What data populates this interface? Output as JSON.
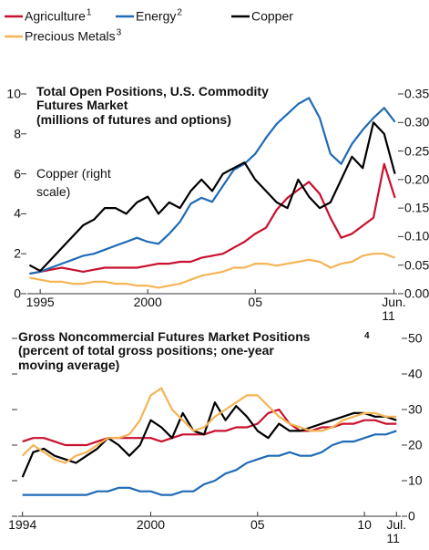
{
  "chart_data": [
    {
      "type": "line",
      "title": "Total Open Positions, U.S. Commodity Futures Market",
      "subtitle": "(millions of futures and options)",
      "annotation": "Copper (right scale)",
      "x": [
        1994.5,
        1995,
        1995.5,
        1996,
        1996.5,
        1997,
        1997.5,
        1998,
        1998.5,
        1999,
        1999.5,
        2000,
        2000.5,
        2001,
        2001.5,
        2002,
        2002.5,
        2003,
        2003.5,
        2004,
        2004.5,
        2005,
        2005.5,
        2006,
        2006.5,
        2007,
        2007.5,
        2008,
        2008.5,
        2009,
        2009.5,
        2010,
        2010.5,
        2011,
        2011.5
      ],
      "xlim": [
        1994.4,
        2011.6
      ],
      "xticks": [
        1995,
        2000,
        {
          "value": 2005,
          "label": "05"
        },
        {
          "value": 2011.45,
          "label": "Jun.\n11"
        }
      ],
      "ylim": [
        0,
        10
      ],
      "yticks": [
        0,
        2,
        4,
        6,
        8,
        10
      ],
      "y2lim": [
        0,
        0.35
      ],
      "y2ticks": [
        {
          "value": 0,
          "label": "0.00"
        },
        {
          "value": 0.05,
          "label": "0.05"
        },
        {
          "value": 0.1,
          "label": "0.10"
        },
        {
          "value": 0.15,
          "label": "0.15"
        },
        {
          "value": 0.2,
          "label": "0.20"
        },
        {
          "value": 0.25,
          "label": "0.25"
        },
        {
          "value": 0.3,
          "label": "0.30"
        },
        {
          "value": 0.35,
          "label": "0.35"
        }
      ],
      "series": [
        {
          "name": "Agriculture",
          "footnote": "1",
          "color": "#c8102e",
          "values": [
            1.0,
            1.1,
            1.2,
            1.3,
            1.2,
            1.1,
            1.2,
            1.3,
            1.3,
            1.3,
            1.3,
            1.4,
            1.5,
            1.5,
            1.6,
            1.6,
            1.8,
            1.9,
            2.0,
            2.3,
            2.6,
            3.0,
            3.3,
            4.2,
            4.8,
            5.2,
            5.6,
            5.0,
            3.8,
            2.8,
            3.0,
            3.4,
            3.8,
            6.5,
            4.8
          ]
        },
        {
          "name": "Energy",
          "footnote": "2",
          "color": "#1f6bb5",
          "values": [
            1.0,
            1.1,
            1.3,
            1.5,
            1.7,
            1.9,
            2.0,
            2.2,
            2.4,
            2.6,
            2.8,
            2.6,
            2.5,
            3.0,
            3.6,
            4.5,
            4.8,
            4.6,
            5.4,
            6.2,
            6.5,
            7.0,
            7.8,
            8.5,
            9.0,
            9.5,
            9.8,
            8.8,
            7.0,
            6.5,
            7.5,
            8.2,
            8.8,
            9.3,
            8.6
          ]
        },
        {
          "name": "Copper",
          "color": "#000000",
          "axis": "y2",
          "values": [
            0.05,
            0.04,
            0.06,
            0.08,
            0.1,
            0.12,
            0.13,
            0.15,
            0.15,
            0.14,
            0.16,
            0.17,
            0.14,
            0.16,
            0.15,
            0.18,
            0.2,
            0.18,
            0.21,
            0.22,
            0.23,
            0.2,
            0.18,
            0.16,
            0.15,
            0.2,
            0.17,
            0.15,
            0.16,
            0.2,
            0.24,
            0.22,
            0.3,
            0.28,
            0.21
          ]
        },
        {
          "name": "Precious Metals",
          "footnote": "3",
          "color": "#f5b455",
          "values": [
            0.8,
            0.7,
            0.6,
            0.6,
            0.5,
            0.5,
            0.6,
            0.6,
            0.5,
            0.5,
            0.4,
            0.4,
            0.3,
            0.4,
            0.5,
            0.7,
            0.9,
            1.0,
            1.1,
            1.3,
            1.3,
            1.5,
            1.5,
            1.4,
            1.5,
            1.6,
            1.7,
            1.6,
            1.3,
            1.5,
            1.6,
            1.9,
            2.0,
            2.0,
            1.8
          ]
        }
      ]
    },
    {
      "type": "line",
      "title": "Gross Noncommercial Futures Market Positions",
      "title_footnote": "4",
      "subtitle": "(percent of total gross positions; one-year moving average)",
      "x": [
        1994,
        1994.5,
        1995,
        1995.5,
        1996,
        1996.5,
        1997,
        1997.5,
        1998,
        1998.5,
        1999,
        1999.5,
        2000,
        2000.5,
        2001,
        2001.5,
        2002,
        2002.5,
        2003,
        2003.5,
        2004,
        2004.5,
        2005,
        2005.5,
        2006,
        2006.5,
        2007,
        2007.5,
        2008,
        2008.5,
        2009,
        2009.5,
        2010,
        2010.5,
        2011,
        2011.5
      ],
      "xlim": [
        1993.8,
        2011.7
      ],
      "xticks": [
        1994,
        2000,
        {
          "value": 2005,
          "label": "05"
        },
        {
          "value": 2010,
          "label": "10"
        },
        {
          "value": 2011.5,
          "label": "Jul.\n11"
        }
      ],
      "y2lim": [
        0,
        50
      ],
      "y2ticks": [
        0,
        10,
        20,
        30,
        40,
        50
      ],
      "series": [
        {
          "color": "#c8102e",
          "axis": "y2",
          "values": [
            21,
            22,
            22,
            21,
            20,
            20,
            20,
            21,
            22,
            22,
            22,
            22,
            22,
            21,
            22,
            23,
            23,
            23,
            24,
            24,
            25,
            25,
            26,
            29,
            30,
            26,
            24,
            24,
            25,
            25,
            26,
            26,
            27,
            27,
            26,
            26
          ]
        },
        {
          "color": "#1f6bb5",
          "axis": "y2",
          "values": [
            6,
            6,
            6,
            6,
            6,
            6,
            6,
            7,
            7,
            8,
            8,
            7,
            7,
            6,
            6,
            7,
            7,
            9,
            10,
            12,
            13,
            15,
            16,
            17,
            17,
            18,
            17,
            17,
            18,
            20,
            21,
            21,
            22,
            23,
            23,
            24
          ]
        },
        {
          "color": "#000000",
          "axis": "y2",
          "values": [
            11,
            18,
            19,
            17,
            16,
            15,
            17,
            19,
            22,
            20,
            17,
            20,
            27,
            25,
            22,
            29,
            24,
            23,
            32,
            27,
            31,
            28,
            24,
            22,
            26,
            24,
            24,
            25,
            26,
            27,
            28,
            29,
            29,
            28,
            28,
            27
          ]
        },
        {
          "color": "#f5b455",
          "axis": "y2",
          "values": [
            17,
            20,
            18,
            16,
            15,
            17,
            18,
            20,
            22,
            22,
            23,
            27,
            34,
            36,
            30,
            27,
            24,
            25,
            28,
            30,
            32,
            34,
            34,
            31,
            28,
            26,
            25,
            24,
            24,
            25,
            27,
            28,
            29,
            29,
            28,
            28
          ]
        }
      ]
    }
  ]
}
